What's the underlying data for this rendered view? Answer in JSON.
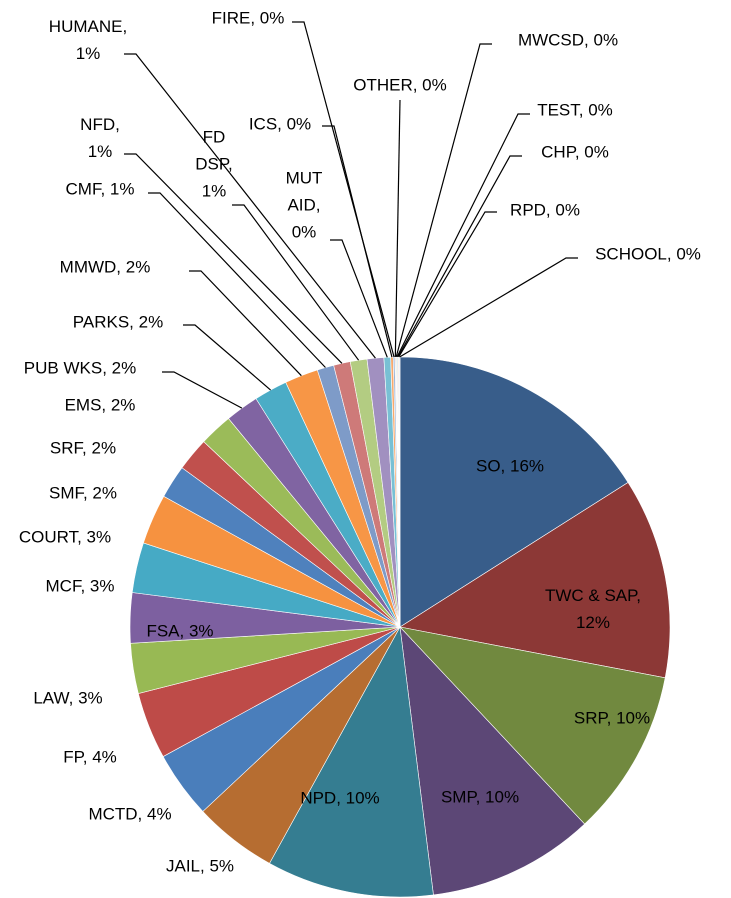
{
  "chart_data": {
    "type": "pie",
    "labels": [
      "SO, 16%",
      "TWC & SAP,\n12%",
      "SRP, 10%",
      "SMP, 10%",
      "NPD, 10%",
      "JAIL, 5%",
      "MCTD, 4%",
      "FP, 4%",
      "LAW, 3%",
      "FSA, 3%",
      "MCF, 3%",
      "COURT, 3%",
      "SMF, 2%",
      "SRF, 2%",
      "EMS, 2%",
      "PUB WKS, 2%",
      "PARKS, 2%",
      "MMWD, 2%",
      "CMF, 1%",
      "NFD,\n1%",
      "FD\nDSP,\n1%",
      "HUMANE,\n1%",
      "MUT\nAID,\n0%",
      "ICS, 0%",
      "FIRE, 0%",
      "OTHER, 0%",
      "MWCSD, 0%",
      "TEST, 0%",
      "CHP, 0%",
      "RPD, 0%",
      "SCHOOL, 0%"
    ],
    "values": [
      16,
      12,
      10,
      10,
      10,
      5,
      4,
      4,
      3,
      3,
      3,
      3,
      2,
      2,
      2,
      2,
      2,
      2,
      1,
      1,
      1,
      1,
      0.4,
      0.15,
      0.1,
      0.05,
      0.05,
      0.05,
      0.05,
      0.05,
      0.05
    ],
    "colors": [
      "#385d8a",
      "#8c3836",
      "#71893f",
      "#5c4776",
      "#357d91",
      "#b66d31",
      "#4a7ebb",
      "#be4b48",
      "#98b954",
      "#7d60a0",
      "#46aac5",
      "#f69240",
      "#4f81bd",
      "#c0504d",
      "#9bbb59",
      "#8064a2",
      "#4bacc6",
      "#f79646",
      "#7e9bc8",
      "#ce7a79",
      "#b3cc82",
      "#a190c0",
      "#78c0d4",
      "#f8a96c",
      "#95b3d7",
      "#d99694",
      "#c3d69b",
      "#b2a2c7",
      "#92cddc",
      "#fac090",
      "#b9cde5"
    ]
  }
}
